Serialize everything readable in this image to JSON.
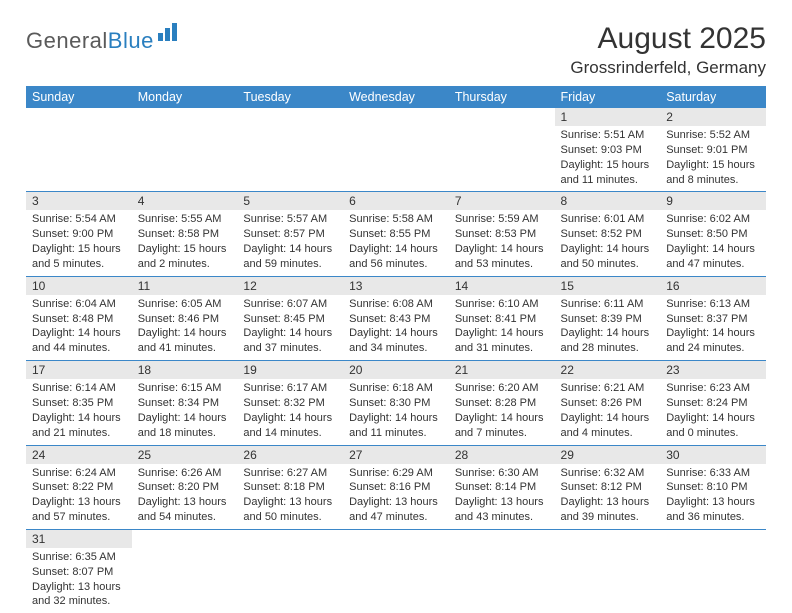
{
  "brand": {
    "part1": "General",
    "part2": "Blue"
  },
  "title": "August 2025",
  "location": "Grossrinderfeld, Germany",
  "colors": {
    "header_bg": "#3b87c8",
    "header_text": "#ffffff",
    "daynum_bg": "#e8e8e8",
    "cell_border": "#3b87c8",
    "text": "#333333",
    "logo_gray": "#5a5a5a",
    "logo_blue": "#2a7fbf"
  },
  "weekdays": [
    "Sunday",
    "Monday",
    "Tuesday",
    "Wednesday",
    "Thursday",
    "Friday",
    "Saturday"
  ],
  "weeks": [
    [
      null,
      null,
      null,
      null,
      null,
      {
        "n": "1",
        "sunrise": "Sunrise: 5:51 AM",
        "sunset": "Sunset: 9:03 PM",
        "daylight": "Daylight: 15 hours and 11 minutes."
      },
      {
        "n": "2",
        "sunrise": "Sunrise: 5:52 AM",
        "sunset": "Sunset: 9:01 PM",
        "daylight": "Daylight: 15 hours and 8 minutes."
      }
    ],
    [
      {
        "n": "3",
        "sunrise": "Sunrise: 5:54 AM",
        "sunset": "Sunset: 9:00 PM",
        "daylight": "Daylight: 15 hours and 5 minutes."
      },
      {
        "n": "4",
        "sunrise": "Sunrise: 5:55 AM",
        "sunset": "Sunset: 8:58 PM",
        "daylight": "Daylight: 15 hours and 2 minutes."
      },
      {
        "n": "5",
        "sunrise": "Sunrise: 5:57 AM",
        "sunset": "Sunset: 8:57 PM",
        "daylight": "Daylight: 14 hours and 59 minutes."
      },
      {
        "n": "6",
        "sunrise": "Sunrise: 5:58 AM",
        "sunset": "Sunset: 8:55 PM",
        "daylight": "Daylight: 14 hours and 56 minutes."
      },
      {
        "n": "7",
        "sunrise": "Sunrise: 5:59 AM",
        "sunset": "Sunset: 8:53 PM",
        "daylight": "Daylight: 14 hours and 53 minutes."
      },
      {
        "n": "8",
        "sunrise": "Sunrise: 6:01 AM",
        "sunset": "Sunset: 8:52 PM",
        "daylight": "Daylight: 14 hours and 50 minutes."
      },
      {
        "n": "9",
        "sunrise": "Sunrise: 6:02 AM",
        "sunset": "Sunset: 8:50 PM",
        "daylight": "Daylight: 14 hours and 47 minutes."
      }
    ],
    [
      {
        "n": "10",
        "sunrise": "Sunrise: 6:04 AM",
        "sunset": "Sunset: 8:48 PM",
        "daylight": "Daylight: 14 hours and 44 minutes."
      },
      {
        "n": "11",
        "sunrise": "Sunrise: 6:05 AM",
        "sunset": "Sunset: 8:46 PM",
        "daylight": "Daylight: 14 hours and 41 minutes."
      },
      {
        "n": "12",
        "sunrise": "Sunrise: 6:07 AM",
        "sunset": "Sunset: 8:45 PM",
        "daylight": "Daylight: 14 hours and 37 minutes."
      },
      {
        "n": "13",
        "sunrise": "Sunrise: 6:08 AM",
        "sunset": "Sunset: 8:43 PM",
        "daylight": "Daylight: 14 hours and 34 minutes."
      },
      {
        "n": "14",
        "sunrise": "Sunrise: 6:10 AM",
        "sunset": "Sunset: 8:41 PM",
        "daylight": "Daylight: 14 hours and 31 minutes."
      },
      {
        "n": "15",
        "sunrise": "Sunrise: 6:11 AM",
        "sunset": "Sunset: 8:39 PM",
        "daylight": "Daylight: 14 hours and 28 minutes."
      },
      {
        "n": "16",
        "sunrise": "Sunrise: 6:13 AM",
        "sunset": "Sunset: 8:37 PM",
        "daylight": "Daylight: 14 hours and 24 minutes."
      }
    ],
    [
      {
        "n": "17",
        "sunrise": "Sunrise: 6:14 AM",
        "sunset": "Sunset: 8:35 PM",
        "daylight": "Daylight: 14 hours and 21 minutes."
      },
      {
        "n": "18",
        "sunrise": "Sunrise: 6:15 AM",
        "sunset": "Sunset: 8:34 PM",
        "daylight": "Daylight: 14 hours and 18 minutes."
      },
      {
        "n": "19",
        "sunrise": "Sunrise: 6:17 AM",
        "sunset": "Sunset: 8:32 PM",
        "daylight": "Daylight: 14 hours and 14 minutes."
      },
      {
        "n": "20",
        "sunrise": "Sunrise: 6:18 AM",
        "sunset": "Sunset: 8:30 PM",
        "daylight": "Daylight: 14 hours and 11 minutes."
      },
      {
        "n": "21",
        "sunrise": "Sunrise: 6:20 AM",
        "sunset": "Sunset: 8:28 PM",
        "daylight": "Daylight: 14 hours and 7 minutes."
      },
      {
        "n": "22",
        "sunrise": "Sunrise: 6:21 AM",
        "sunset": "Sunset: 8:26 PM",
        "daylight": "Daylight: 14 hours and 4 minutes."
      },
      {
        "n": "23",
        "sunrise": "Sunrise: 6:23 AM",
        "sunset": "Sunset: 8:24 PM",
        "daylight": "Daylight: 14 hours and 0 minutes."
      }
    ],
    [
      {
        "n": "24",
        "sunrise": "Sunrise: 6:24 AM",
        "sunset": "Sunset: 8:22 PM",
        "daylight": "Daylight: 13 hours and 57 minutes."
      },
      {
        "n": "25",
        "sunrise": "Sunrise: 6:26 AM",
        "sunset": "Sunset: 8:20 PM",
        "daylight": "Daylight: 13 hours and 54 minutes."
      },
      {
        "n": "26",
        "sunrise": "Sunrise: 6:27 AM",
        "sunset": "Sunset: 8:18 PM",
        "daylight": "Daylight: 13 hours and 50 minutes."
      },
      {
        "n": "27",
        "sunrise": "Sunrise: 6:29 AM",
        "sunset": "Sunset: 8:16 PM",
        "daylight": "Daylight: 13 hours and 47 minutes."
      },
      {
        "n": "28",
        "sunrise": "Sunrise: 6:30 AM",
        "sunset": "Sunset: 8:14 PM",
        "daylight": "Daylight: 13 hours and 43 minutes."
      },
      {
        "n": "29",
        "sunrise": "Sunrise: 6:32 AM",
        "sunset": "Sunset: 8:12 PM",
        "daylight": "Daylight: 13 hours and 39 minutes."
      },
      {
        "n": "30",
        "sunrise": "Sunrise: 6:33 AM",
        "sunset": "Sunset: 8:10 PM",
        "daylight": "Daylight: 13 hours and 36 minutes."
      }
    ],
    [
      {
        "n": "31",
        "sunrise": "Sunrise: 6:35 AM",
        "sunset": "Sunset: 8:07 PM",
        "daylight": "Daylight: 13 hours and 32 minutes."
      },
      null,
      null,
      null,
      null,
      null,
      null
    ]
  ]
}
